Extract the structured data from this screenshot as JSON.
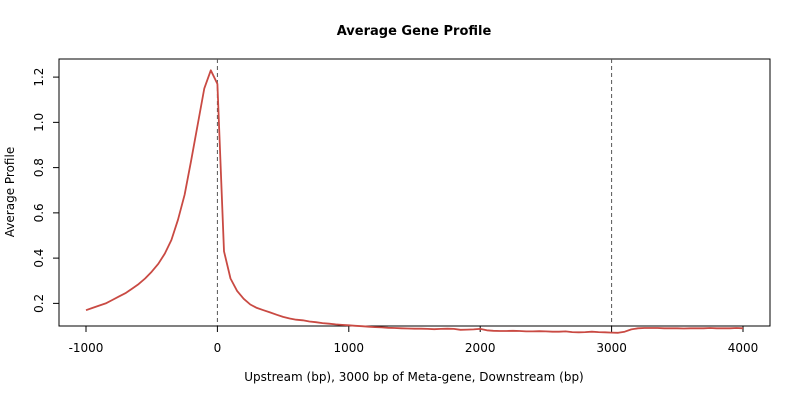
{
  "chart_data": {
    "type": "line",
    "title": "Average Gene Profile",
    "xlabel": "Upstream (bp), 3000 bp of Meta-gene, Downstream (bp)",
    "ylabel": "Average Profile",
    "xlim": [
      -1000,
      4000
    ],
    "ylim": [
      0.1,
      1.28
    ],
    "x_ticks": [
      -1000,
      0,
      1000,
      2000,
      3000,
      4000
    ],
    "y_ticks": [
      0.2,
      0.4,
      0.6,
      0.8,
      1.0,
      1.2
    ],
    "x_tick_labels": [
      "-1000",
      "0",
      "1000",
      "2000",
      "3000",
      "4000"
    ],
    "y_tick_labels": [
      "0.2",
      "0.4",
      "0.6",
      "0.8",
      "1.0",
      "1.2"
    ],
    "vlines": [
      0,
      3000
    ],
    "grid": false,
    "line_color": "#c94a43",
    "series": [
      {
        "x": [
          -1000,
          -950,
          -900,
          -850,
          -800,
          -750,
          -700,
          -650,
          -600,
          -550,
          -500,
          -450,
          -400,
          -350,
          -300,
          -250,
          -200,
          -150,
          -100,
          -50,
          0,
          50,
          100,
          150,
          200,
          250,
          300,
          350,
          400,
          450,
          500,
          550,
          600,
          650,
          700,
          750,
          800,
          850,
          900,
          950,
          1000,
          1050,
          1100,
          1150,
          1200,
          1250,
          1300,
          1350,
          1400,
          1450,
          1500,
          1550,
          1600,
          1650,
          1700,
          1750,
          1800,
          1850,
          1900,
          1950,
          2000,
          2050,
          2100,
          2150,
          2200,
          2250,
          2300,
          2350,
          2400,
          2450,
          2500,
          2550,
          2600,
          2650,
          2700,
          2750,
          2800,
          2850,
          2900,
          2950,
          3000,
          3050,
          3100,
          3150,
          3200,
          3250,
          3300,
          3350,
          3400,
          3450,
          3500,
          3550,
          3600,
          3650,
          3700,
          3750,
          3800,
          3850,
          3900,
          3950,
          4000
        ],
        "values": [
          0.17,
          0.18,
          0.19,
          0.2,
          0.215,
          0.23,
          0.245,
          0.265,
          0.285,
          0.31,
          0.34,
          0.375,
          0.42,
          0.48,
          0.57,
          0.68,
          0.83,
          0.99,
          1.15,
          1.23,
          1.17,
          0.43,
          0.31,
          0.255,
          0.22,
          0.195,
          0.18,
          0.17,
          0.16,
          0.15,
          0.14,
          0.133,
          0.128,
          0.125,
          0.12,
          0.117,
          0.113,
          0.11,
          0.107,
          0.105,
          0.103,
          0.101,
          0.099,
          0.097,
          0.095,
          0.094,
          0.092,
          0.091,
          0.09,
          0.089,
          0.088,
          0.088,
          0.087,
          0.086,
          0.087,
          0.088,
          0.087,
          0.083,
          0.084,
          0.085,
          0.087,
          0.081,
          0.079,
          0.078,
          0.078,
          0.079,
          0.078,
          0.076,
          0.076,
          0.077,
          0.076,
          0.075,
          0.075,
          0.076,
          0.073,
          0.072,
          0.073,
          0.075,
          0.073,
          0.072,
          0.071,
          0.07,
          0.075,
          0.085,
          0.09,
          0.091,
          0.091,
          0.091,
          0.09,
          0.09,
          0.09,
          0.089,
          0.09,
          0.09,
          0.09,
          0.091,
          0.09,
          0.09,
          0.09,
          0.091,
          0.09
        ]
      }
    ]
  }
}
